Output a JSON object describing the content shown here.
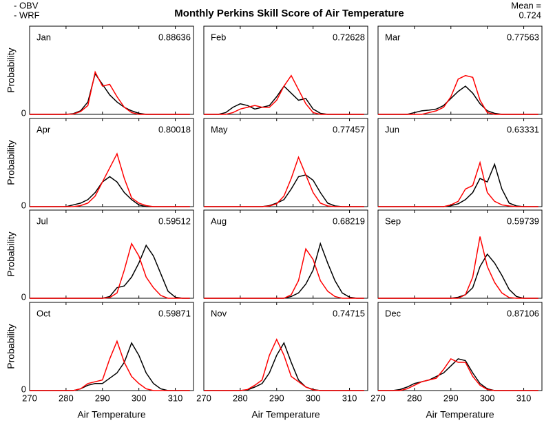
{
  "title": "Monthly Perkins Skill Score of Air Temperature",
  "legend": [
    {
      "label": "- OBV",
      "color": "#000000"
    },
    {
      "label": "- WRF",
      "color": "#ff0000"
    }
  ],
  "mean_label": "Mean =",
  "mean_value": 0.724,
  "mean_color": "#ff0000",
  "chart_data": [
    {
      "type": "line",
      "title": "Jan",
      "annotation": 0.88636,
      "ylabel": "Probability",
      "x": [
        270,
        272,
        274,
        276,
        278,
        280,
        282,
        284,
        286,
        288,
        290,
        292,
        294,
        296,
        298,
        300,
        302,
        304,
        306,
        308,
        310,
        312,
        314
      ],
      "series": [
        {
          "color": "#000000",
          "values": [
            0,
            0,
            0,
            0,
            0,
            0,
            0.002,
            0.01,
            0.035,
            0.115,
            0.085,
            0.055,
            0.035,
            0.02,
            0.01,
            0.003,
            0,
            0,
            0,
            0,
            0,
            0,
            0
          ]
        },
        {
          "color": "#ff0000",
          "values": [
            0,
            0,
            0,
            0,
            0,
            0,
            0.001,
            0.008,
            0.025,
            0.12,
            0.08,
            0.085,
            0.05,
            0.02,
            0.005,
            0,
            0,
            0,
            0,
            0,
            0,
            0,
            0
          ]
        }
      ],
      "xlim": [
        270,
        315
      ],
      "xticks": [
        270,
        280,
        290,
        300,
        310
      ],
      "ylim": [
        0,
        0.25
      ],
      "yticks": [
        0
      ]
    },
    {
      "type": "line",
      "title": "Feb",
      "annotation": 0.72628,
      "x": [
        270,
        272,
        274,
        276,
        278,
        280,
        282,
        284,
        286,
        288,
        290,
        292,
        294,
        296,
        298,
        300,
        302,
        304,
        306,
        308,
        310,
        312,
        314
      ],
      "series": [
        {
          "color": "#000000",
          "values": [
            0,
            0,
            0,
            0.005,
            0.02,
            0.03,
            0.025,
            0.015,
            0.02,
            0.025,
            0.05,
            0.08,
            0.06,
            0.04,
            0.045,
            0.015,
            0.003,
            0,
            0,
            0,
            0,
            0,
            0
          ]
        },
        {
          "color": "#ff0000",
          "values": [
            0,
            0,
            0,
            0,
            0.005,
            0.015,
            0.02,
            0.025,
            0.02,
            0.02,
            0.04,
            0.08,
            0.11,
            0.07,
            0.03,
            0.005,
            0,
            0,
            0,
            0,
            0,
            0,
            0
          ]
        }
      ],
      "xlim": [
        270,
        315
      ],
      "xticks": [
        270,
        280,
        290,
        300,
        310
      ],
      "ylim": [
        0,
        0.25
      ],
      "yticks": [
        0
      ]
    },
    {
      "type": "line",
      "title": "Mar",
      "annotation": 0.77563,
      "x": [
        270,
        272,
        274,
        276,
        278,
        280,
        282,
        284,
        286,
        288,
        290,
        292,
        294,
        296,
        298,
        300,
        302,
        304,
        306,
        308,
        310,
        312,
        314
      ],
      "series": [
        {
          "color": "#000000",
          "values": [
            0,
            0,
            0,
            0,
            0,
            0.005,
            0.01,
            0.012,
            0.015,
            0.025,
            0.045,
            0.065,
            0.08,
            0.06,
            0.03,
            0.01,
            0.003,
            0,
            0,
            0,
            0,
            0,
            0
          ]
        },
        {
          "color": "#ff0000",
          "values": [
            0,
            0,
            0,
            0,
            0,
            0,
            0,
            0.005,
            0.01,
            0.02,
            0.05,
            0.1,
            0.11,
            0.105,
            0.04,
            0.005,
            0,
            0,
            0,
            0,
            0,
            0,
            0
          ]
        }
      ],
      "xlim": [
        270,
        315
      ],
      "xticks": [
        270,
        280,
        290,
        300,
        310
      ],
      "ylim": [
        0,
        0.25
      ],
      "yticks": [
        0
      ]
    },
    {
      "type": "line",
      "title": "Apr",
      "annotation": 0.80018,
      "ylabel": "Probability",
      "x": [
        270,
        272,
        274,
        276,
        278,
        280,
        282,
        284,
        286,
        288,
        290,
        292,
        294,
        296,
        298,
        300,
        302,
        304,
        306,
        308,
        310,
        312,
        314
      ],
      "series": [
        {
          "color": "#000000",
          "values": [
            0,
            0,
            0,
            0,
            0,
            0,
            0.005,
            0.01,
            0.02,
            0.04,
            0.07,
            0.085,
            0.07,
            0.04,
            0.02,
            0.005,
            0,
            0,
            0,
            0,
            0,
            0,
            0
          ]
        },
        {
          "color": "#ff0000",
          "values": [
            0,
            0,
            0,
            0,
            0,
            0,
            0,
            0.003,
            0.01,
            0.03,
            0.07,
            0.11,
            0.15,
            0.08,
            0.025,
            0.01,
            0.003,
            0,
            0,
            0,
            0,
            0,
            0
          ]
        }
      ],
      "xlim": [
        270,
        315
      ],
      "xticks": [
        270,
        280,
        290,
        300,
        310
      ],
      "ylim": [
        0,
        0.25
      ],
      "yticks": [
        0
      ]
    },
    {
      "type": "line",
      "title": "May",
      "annotation": 0.77457,
      "x": [
        270,
        272,
        274,
        276,
        278,
        280,
        282,
        284,
        286,
        288,
        290,
        292,
        294,
        296,
        298,
        300,
        302,
        304,
        306,
        308,
        310,
        312,
        314
      ],
      "series": [
        {
          "color": "#000000",
          "values": [
            0,
            0,
            0,
            0,
            0,
            0,
            0,
            0,
            0,
            0.003,
            0.01,
            0.02,
            0.05,
            0.085,
            0.09,
            0.075,
            0.04,
            0.01,
            0.002,
            0,
            0,
            0,
            0
          ]
        },
        {
          "color": "#ff0000",
          "values": [
            0,
            0,
            0,
            0,
            0,
            0,
            0,
            0,
            0,
            0.002,
            0.008,
            0.03,
            0.08,
            0.14,
            0.09,
            0.04,
            0.01,
            0.002,
            0,
            0,
            0,
            0,
            0
          ]
        }
      ],
      "xlim": [
        270,
        315
      ],
      "xticks": [
        270,
        280,
        290,
        300,
        310
      ],
      "ylim": [
        0,
        0.25
      ],
      "yticks": [
        0
      ]
    },
    {
      "type": "line",
      "title": "Jun",
      "annotation": 0.63331,
      "x": [
        270,
        272,
        274,
        276,
        278,
        280,
        282,
        284,
        286,
        288,
        290,
        292,
        294,
        296,
        298,
        300,
        302,
        304,
        306,
        308,
        310,
        312,
        314
      ],
      "series": [
        {
          "color": "#000000",
          "values": [
            0,
            0,
            0,
            0,
            0,
            0,
            0,
            0,
            0,
            0,
            0.003,
            0.008,
            0.02,
            0.04,
            0.08,
            0.07,
            0.12,
            0.05,
            0.01,
            0.002,
            0,
            0,
            0
          ]
        },
        {
          "color": "#ff0000",
          "values": [
            0,
            0,
            0,
            0,
            0,
            0,
            0,
            0,
            0,
            0,
            0.005,
            0.015,
            0.05,
            0.06,
            0.125,
            0.04,
            0.015,
            0.005,
            0.002,
            0,
            0,
            0,
            0
          ]
        }
      ],
      "xlim": [
        270,
        315
      ],
      "xticks": [
        270,
        280,
        290,
        300,
        310
      ],
      "ylim": [
        0,
        0.25
      ],
      "yticks": [
        0
      ]
    },
    {
      "type": "line",
      "title": "Jul",
      "annotation": 0.59512,
      "ylabel": "Probability",
      "x": [
        270,
        272,
        274,
        276,
        278,
        280,
        282,
        284,
        286,
        288,
        290,
        292,
        294,
        296,
        298,
        300,
        302,
        304,
        306,
        308,
        310,
        312,
        314
      ],
      "series": [
        {
          "color": "#000000",
          "values": [
            0,
            0,
            0,
            0,
            0,
            0,
            0,
            0,
            0,
            0,
            0,
            0.005,
            0.03,
            0.035,
            0.06,
            0.1,
            0.15,
            0.12,
            0.07,
            0.02,
            0.003,
            0,
            0
          ]
        },
        {
          "color": "#ff0000",
          "values": [
            0,
            0,
            0,
            0,
            0,
            0,
            0,
            0,
            0,
            0,
            0,
            0.002,
            0.015,
            0.08,
            0.155,
            0.12,
            0.06,
            0.03,
            0.008,
            0,
            0,
            0,
            0
          ]
        }
      ],
      "xlim": [
        270,
        315
      ],
      "xticks": [
        270,
        280,
        290,
        300,
        310
      ],
      "ylim": [
        0,
        0.25
      ],
      "yticks": [
        0
      ]
    },
    {
      "type": "line",
      "title": "Aug",
      "annotation": 0.68219,
      "x": [
        270,
        272,
        274,
        276,
        278,
        280,
        282,
        284,
        286,
        288,
        290,
        292,
        294,
        296,
        298,
        300,
        302,
        304,
        306,
        308,
        310,
        312,
        314
      ],
      "series": [
        {
          "color": "#000000",
          "values": [
            0,
            0,
            0,
            0,
            0,
            0,
            0,
            0,
            0,
            0,
            0,
            0,
            0.005,
            0.015,
            0.04,
            0.08,
            0.155,
            0.1,
            0.05,
            0.015,
            0.003,
            0,
            0
          ]
        },
        {
          "color": "#ff0000",
          "values": [
            0,
            0,
            0,
            0,
            0,
            0,
            0,
            0,
            0,
            0,
            0,
            0,
            0.01,
            0.05,
            0.14,
            0.11,
            0.05,
            0.02,
            0.005,
            0,
            0,
            0,
            0
          ]
        }
      ],
      "xlim": [
        270,
        315
      ],
      "xticks": [
        270,
        280,
        290,
        300,
        310
      ],
      "ylim": [
        0,
        0.25
      ],
      "yticks": [
        0
      ]
    },
    {
      "type": "line",
      "title": "Sep",
      "annotation": 0.59739,
      "x": [
        270,
        272,
        274,
        276,
        278,
        280,
        282,
        284,
        286,
        288,
        290,
        292,
        294,
        296,
        298,
        300,
        302,
        304,
        306,
        308,
        310,
        312,
        314
      ],
      "series": [
        {
          "color": "#000000",
          "values": [
            0,
            0,
            0,
            0,
            0,
            0,
            0,
            0,
            0,
            0,
            0,
            0.003,
            0.01,
            0.03,
            0.09,
            0.125,
            0.1,
            0.065,
            0.025,
            0.005,
            0,
            0,
            0
          ]
        },
        {
          "color": "#ff0000",
          "values": [
            0,
            0,
            0,
            0,
            0,
            0,
            0,
            0,
            0,
            0,
            0,
            0,
            0.01,
            0.06,
            0.175,
            0.09,
            0.045,
            0.015,
            0.002,
            0,
            0,
            0,
            0
          ]
        }
      ],
      "xlim": [
        270,
        315
      ],
      "xticks": [
        270,
        280,
        290,
        300,
        310
      ],
      "ylim": [
        0,
        0.25
      ],
      "yticks": [
        0
      ]
    },
    {
      "type": "line",
      "title": "Oct",
      "annotation": 0.59871,
      "ylabel": "Probability",
      "xlabel": "Air Temperature",
      "x": [
        270,
        272,
        274,
        276,
        278,
        280,
        282,
        284,
        286,
        288,
        290,
        292,
        294,
        296,
        298,
        300,
        302,
        304,
        306,
        308,
        310,
        312,
        314
      ],
      "series": [
        {
          "color": "#000000",
          "values": [
            0,
            0,
            0,
            0,
            0,
            0,
            0,
            0.005,
            0.015,
            0.02,
            0.02,
            0.035,
            0.05,
            0.08,
            0.135,
            0.1,
            0.05,
            0.02,
            0.005,
            0,
            0,
            0,
            0
          ]
        },
        {
          "color": "#ff0000",
          "values": [
            0,
            0,
            0,
            0,
            0,
            0,
            0,
            0.005,
            0.02,
            0.025,
            0.03,
            0.09,
            0.14,
            0.08,
            0.04,
            0.02,
            0.005,
            0,
            0,
            0,
            0,
            0,
            0
          ]
        }
      ],
      "xlim": [
        270,
        315
      ],
      "xticks": [
        270,
        280,
        290,
        300,
        310
      ],
      "ylim": [
        0,
        0.25
      ],
      "yticks": [
        0
      ]
    },
    {
      "type": "line",
      "title": "Nov",
      "annotation": 0.74715,
      "xlabel": "Air Temperature",
      "x": [
        270,
        272,
        274,
        276,
        278,
        280,
        282,
        284,
        286,
        288,
        290,
        292,
        294,
        296,
        298,
        300,
        302,
        304,
        306,
        308,
        310,
        312,
        314
      ],
      "series": [
        {
          "color": "#000000",
          "values": [
            0,
            0,
            0,
            0,
            0,
            0,
            0.002,
            0.01,
            0.02,
            0.05,
            0.1,
            0.135,
            0.08,
            0.03,
            0.01,
            0.003,
            0,
            0,
            0,
            0,
            0,
            0,
            0
          ]
        },
        {
          "color": "#ff0000",
          "values": [
            0,
            0,
            0,
            0,
            0,
            0,
            0.003,
            0.015,
            0.03,
            0.1,
            0.145,
            0.1,
            0.04,
            0.025,
            0.01,
            0.002,
            0,
            0,
            0,
            0,
            0,
            0,
            0
          ]
        }
      ],
      "xlim": [
        270,
        315
      ],
      "xticks": [
        270,
        280,
        290,
        300,
        310
      ],
      "ylim": [
        0,
        0.25
      ],
      "yticks": [
        0
      ]
    },
    {
      "type": "line",
      "title": "Dec",
      "annotation": 0.87106,
      "xlabel": "Air Temperature",
      "x": [
        270,
        272,
        274,
        276,
        278,
        280,
        282,
        284,
        286,
        288,
        290,
        292,
        294,
        296,
        298,
        300,
        302,
        304,
        306,
        308,
        310,
        312,
        314
      ],
      "series": [
        {
          "color": "#000000",
          "values": [
            0,
            0,
            0,
            0.003,
            0.01,
            0.02,
            0.025,
            0.03,
            0.04,
            0.05,
            0.07,
            0.09,
            0.085,
            0.05,
            0.02,
            0.005,
            0,
            0,
            0,
            0,
            0,
            0,
            0
          ]
        },
        {
          "color": "#ff0000",
          "values": [
            0,
            0,
            0,
            0,
            0.005,
            0.015,
            0.025,
            0.03,
            0.035,
            0.06,
            0.09,
            0.08,
            0.08,
            0.04,
            0.015,
            0.003,
            0,
            0,
            0,
            0,
            0,
            0,
            0
          ]
        }
      ],
      "xlim": [
        270,
        315
      ],
      "xticks": [
        270,
        280,
        290,
        300,
        310
      ],
      "ylim": [
        0,
        0.25
      ],
      "yticks": [
        0
      ]
    }
  ]
}
